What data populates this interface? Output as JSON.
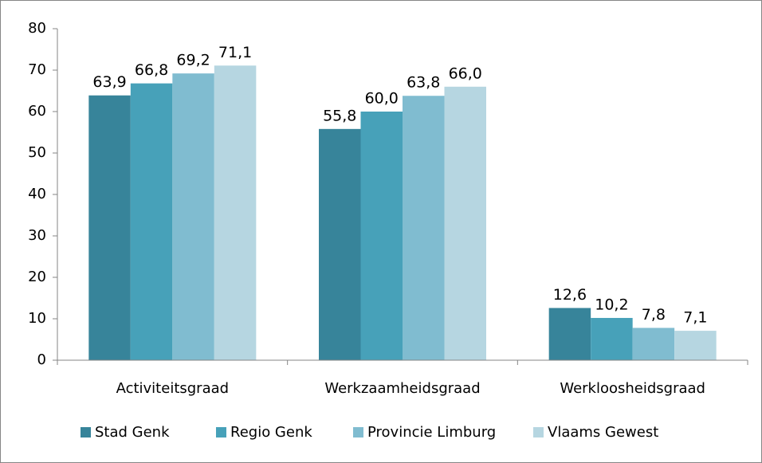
{
  "chart_data": {
    "type": "bar",
    "categories": [
      "Activiteitsgraad",
      "Werkzaamheidsgraad",
      "Werkloosheidsgraad"
    ],
    "series": [
      {
        "name": "Stad Genk",
        "color": "#37849a",
        "values": [
          63.9,
          55.8,
          12.6
        ],
        "value_labels": [
          "63,9",
          "55,8",
          "12,6"
        ]
      },
      {
        "name": "Regio Genk",
        "color": "#47a1b9",
        "values": [
          66.8,
          60.0,
          10.2
        ],
        "value_labels": [
          "66,8",
          "60,0",
          "10,2"
        ]
      },
      {
        "name": "Provincie Limburg",
        "color": "#80bcd0",
        "values": [
          69.2,
          63.8,
          7.8
        ],
        "value_labels": [
          "69,2",
          "63,8",
          "7,8"
        ]
      },
      {
        "name": "Vlaams Gewest",
        "color": "#b6d6e1",
        "values": [
          71.1,
          66.0,
          7.1
        ],
        "value_labels": [
          "71,1",
          "66,0",
          "7,1"
        ]
      }
    ],
    "ylim": [
      0,
      80
    ],
    "yticks": [
      0,
      10,
      20,
      30,
      40,
      50,
      60,
      70,
      80
    ],
    "grid": false,
    "legend": "bottom"
  }
}
